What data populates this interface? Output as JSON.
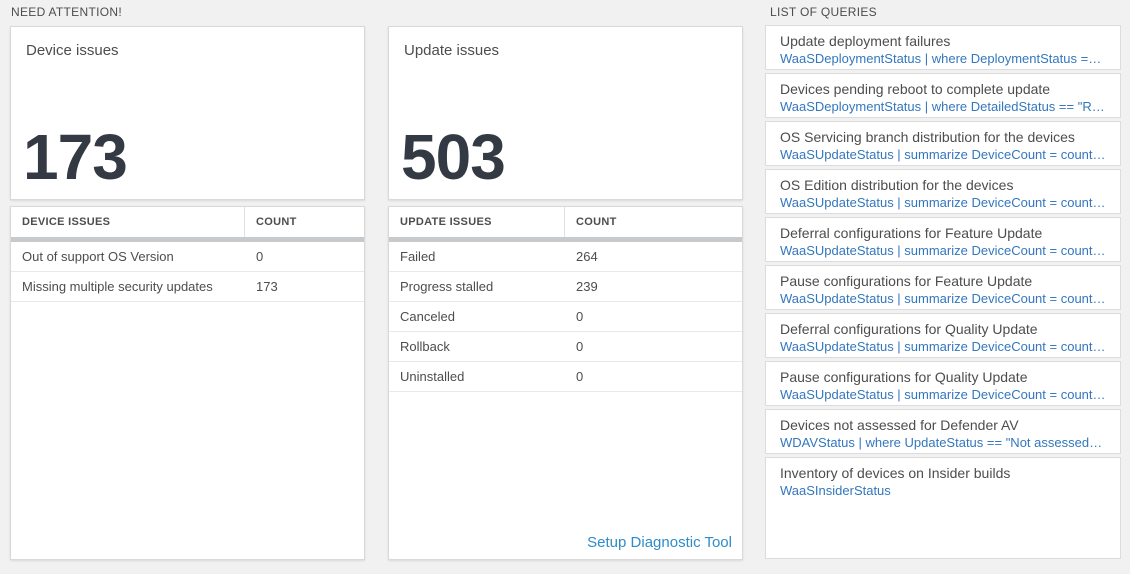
{
  "colors": {
    "page_bg": "#f1f1f1",
    "card_bg": "#ffffff",
    "card_border": "#d9d9d9",
    "section_header_text": "#4d4d4d",
    "big_number_text": "#333a43",
    "table_header_bar": "#c6cacd",
    "row_divider": "#e8e8e8",
    "query_link_blue": "#3377bd",
    "setup_link_blue": "#2e8cc8"
  },
  "need_attention": {
    "section_title": "NEED ATTENTION!",
    "device": {
      "title": "Device issues",
      "count": "173",
      "table": {
        "headers": [
          "DEVICE ISSUES",
          "COUNT"
        ],
        "rows": [
          {
            "label": "Out of support OS Version",
            "count": "0"
          },
          {
            "label": "Missing multiple security updates",
            "count": "173"
          }
        ]
      }
    },
    "update": {
      "title": "Update issues",
      "count": "503",
      "table": {
        "headers": [
          "UPDATE ISSUES",
          "COUNT"
        ],
        "rows": [
          {
            "label": "Failed",
            "count": "264"
          },
          {
            "label": "Progress stalled",
            "count": "239"
          },
          {
            "label": "Canceled",
            "count": "0"
          },
          {
            "label": "Rollback",
            "count": "0"
          },
          {
            "label": "Uninstalled",
            "count": "0"
          }
        ]
      },
      "footer_link": "Setup Diagnostic Tool"
    }
  },
  "query_list": {
    "section_title": "LIST OF QUERIES",
    "items": [
      {
        "title": "Update deployment failures",
        "query": "WaaSDeploymentStatus | where DeploymentStatus == \"Failed\" |..."
      },
      {
        "title": "Devices pending reboot to complete update",
        "query": "WaaSDeploymentStatus | where DetailedStatus == \"Reboot pend..."
      },
      {
        "title": "OS Servicing branch distribution for the devices",
        "query": "WaaSUpdateStatus | summarize DeviceCount = count() by OSSer..."
      },
      {
        "title": "OS Edition distribution for the devices",
        "query": "WaaSUpdateStatus | summarize DeviceCount = count() by OSEdit..."
      },
      {
        "title": "Deferral configurations for Feature Update",
        "query": "WaaSUpdateStatus | summarize DeviceCount = count() by Featur..."
      },
      {
        "title": "Pause configurations for Feature Update",
        "query": "WaaSUpdateStatus | summarize DeviceCount = count() by Featur..."
      },
      {
        "title": "Deferral configurations for Quality Update",
        "query": "WaaSUpdateStatus | summarize DeviceCount = count() by Qualit..."
      },
      {
        "title": "Pause configurations for Quality Update",
        "query": "WaaSUpdateStatus | summarize DeviceCount = count() by Qualit..."
      },
      {
        "title": "Devices not assessed for Defender AV",
        "query": "WDAVStatus | where UpdateStatus == \"Not assessed\" | render ta..."
      },
      {
        "title": "Inventory of devices on Insider builds",
        "query": "WaaSInsiderStatus"
      }
    ]
  }
}
